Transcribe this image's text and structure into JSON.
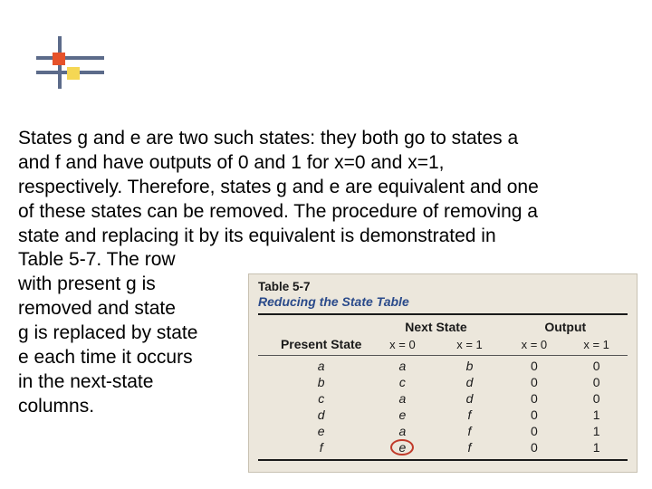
{
  "paragraph": {
    "line1": "States g and e are two such states: they both go to states a",
    "line2": "and f and have outputs of 0 and 1 for x=0 and x=1,",
    "line3": "respectively. Therefore, states g and e are equivalent and one",
    "line4": "of these states can be removed. The procedure of removing a",
    "line5": "state and replacing it by its equivalent is demonstrated in",
    "narrow1": "Table 5-7. The row",
    "narrow2": "with present g is",
    "narrow3": "removed and state",
    "narrow4": "g is replaced by state",
    "narrow5": "e each time it occurs",
    "narrow6": "in the next-state",
    "narrow7": "columns."
  },
  "table": {
    "number": "Table 5-7",
    "title": "Reducing the State Table",
    "headers": {
      "present": "Present State",
      "next": "Next State",
      "output": "Output",
      "x0": "x = 0",
      "x1": "x = 1"
    },
    "rows": [
      {
        "ps": "a",
        "ns0": "a",
        "ns1": "b",
        "o0": "0",
        "o1": "0"
      },
      {
        "ps": "b",
        "ns0": "c",
        "ns1": "d",
        "o0": "0",
        "o1": "0"
      },
      {
        "ps": "c",
        "ns0": "a",
        "ns1": "d",
        "o0": "0",
        "o1": "0"
      },
      {
        "ps": "d",
        "ns0": "e",
        "ns1": "f",
        "o0": "0",
        "o1": "1"
      },
      {
        "ps": "e",
        "ns0": "a",
        "ns1": "f",
        "o0": "0",
        "o1": "1"
      },
      {
        "ps": "f",
        "ns0": "e",
        "ns1": "f",
        "o0": "0",
        "o1": "1",
        "circle_ns0": true
      }
    ],
    "colors": {
      "bg": "#ece7dc",
      "title_color": "#2a4a8a",
      "circle_color": "#c03a2a"
    }
  }
}
